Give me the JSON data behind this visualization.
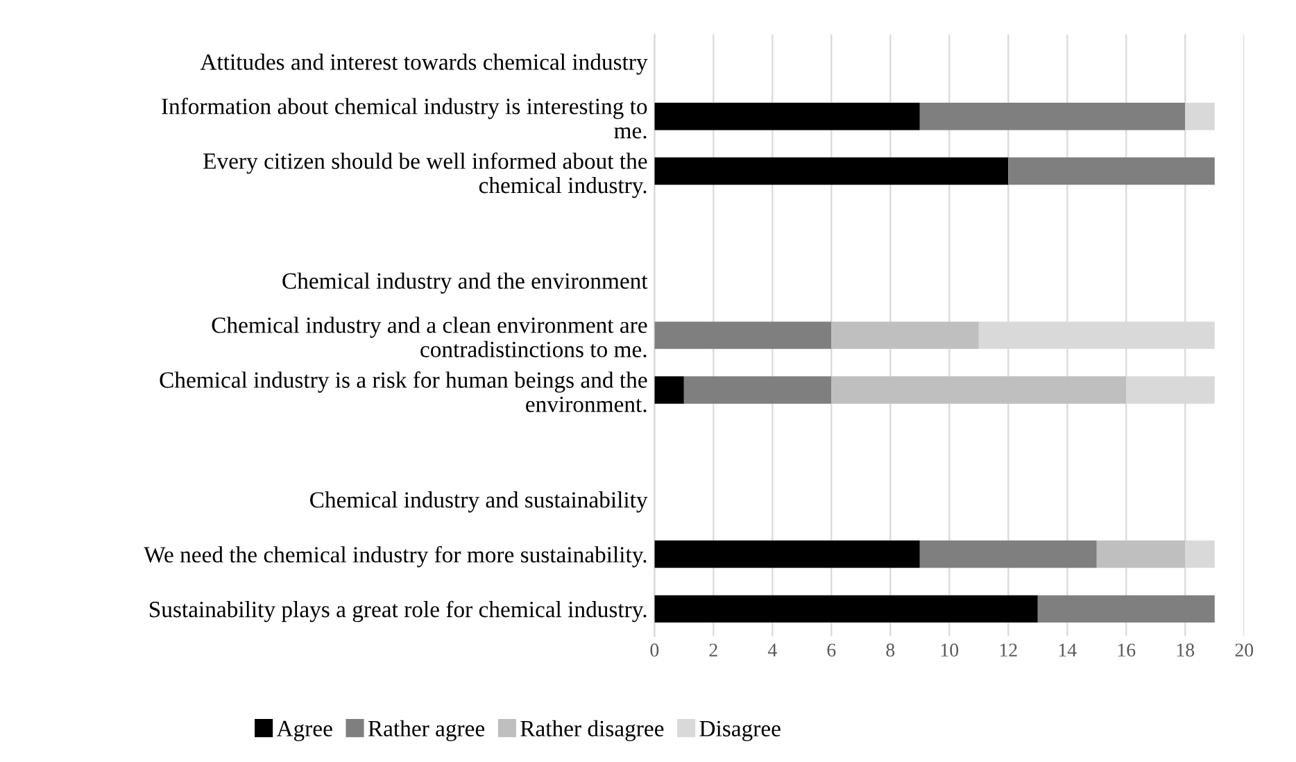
{
  "chart_data": {
    "type": "bar",
    "orientation": "horizontal",
    "stacked": true,
    "categories": [
      "Attitudes and interest towards chemical industry",
      "Information about chemical industry is interesting to\nme.",
      "Every citizen should be well informed about the\nchemical industry.",
      null,
      "Chemical industry and the environment",
      "Chemical industry and a clean environment are\ncontradistinctions to me.",
      "Chemical industry is a risk for human beings and the\nenvironment.",
      null,
      "Chemical industry and sustainability",
      "We need the chemical industry for more sustainability.",
      "Sustainability plays a great role for chemical industry."
    ],
    "series": [
      {
        "name": "Agree",
        "color": "#000000",
        "values": [
          null,
          9,
          12,
          null,
          null,
          0,
          1,
          null,
          null,
          9,
          13
        ]
      },
      {
        "name": "Rather agree",
        "color": "#7f7f7f",
        "values": [
          null,
          9,
          7,
          null,
          null,
          6,
          5,
          null,
          null,
          6,
          6
        ]
      },
      {
        "name": "Rather disagree",
        "color": "#bfbfbf",
        "values": [
          null,
          0,
          0,
          null,
          null,
          5,
          10,
          null,
          null,
          3,
          0
        ]
      },
      {
        "name": "Disagree",
        "color": "#d9d9d9",
        "values": [
          null,
          1,
          0,
          null,
          null,
          8,
          3,
          null,
          null,
          1,
          0
        ]
      }
    ],
    "xlim": [
      0,
      20
    ],
    "xticks": [
      0,
      2,
      4,
      6,
      8,
      10,
      12,
      14,
      16,
      18,
      20
    ],
    "grid": "x",
    "legend": "bottom"
  }
}
